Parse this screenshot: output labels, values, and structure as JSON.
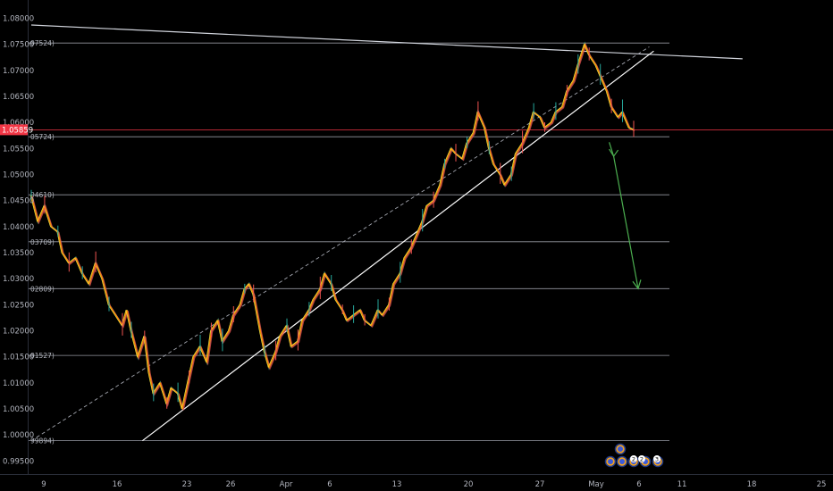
{
  "chart_data": {
    "type": "line",
    "title": "",
    "ylim": [
      0.9925,
      1.0835
    ],
    "y_ticks": [
      "1.08000",
      "1.07500",
      "1.07000",
      "1.06500",
      "1.06000",
      "1.05500",
      "1.05000",
      "1.04500",
      "1.04000",
      "1.03500",
      "1.03000",
      "1.02500",
      "1.02000",
      "1.01500",
      "1.01000",
      "1.00500",
      "1.00000",
      "0.99500"
    ],
    "x_ticks": [
      "9",
      "16",
      "23",
      "26",
      "Apr",
      "6",
      "13",
      "20",
      "27",
      "May",
      "6",
      "11",
      "18",
      "25"
    ],
    "current_price": {
      "label": "1.05859",
      "value": 1.05859,
      "color": "#f23645"
    },
    "horizontal_levels": [
      {
        "label": "07524)",
        "value": 1.07524
      },
      {
        "label": "05724)",
        "value": 1.05724
      },
      {
        "label": "04610)",
        "value": 1.0461
      },
      {
        "label": "03709)",
        "value": 1.03709
      },
      {
        "label": "02809)",
        "value": 1.02809
      },
      {
        "label": "01527)",
        "value": 1.01527
      },
      {
        "label": "99894)",
        "value": 0.99894
      }
    ],
    "series": [
      {
        "values": [
          [
            0,
            1.046
          ],
          [
            3,
            1.041
          ],
          [
            6,
            1.044
          ],
          [
            9,
            1.04
          ],
          [
            12,
            1.039
          ],
          [
            14,
            1.035
          ],
          [
            17,
            1.033
          ],
          [
            20,
            1.034
          ],
          [
            23,
            1.031
          ],
          [
            26,
            1.029
          ],
          [
            29,
            1.033
          ],
          [
            32,
            1.03
          ],
          [
            35,
            1.025
          ],
          [
            38,
            1.023
          ],
          [
            41,
            1.021
          ],
          [
            43,
            1.024
          ],
          [
            45,
            1.02
          ],
          [
            48,
            1.015
          ],
          [
            51,
            1.019
          ],
          [
            53,
            1.012
          ],
          [
            55,
            1.008
          ],
          [
            58,
            1.01
          ],
          [
            61,
            1.006
          ],
          [
            63,
            1.009
          ],
          [
            66,
            1.008
          ],
          [
            68,
            1.005
          ],
          [
            71,
            1.011
          ],
          [
            73,
            1.015
          ],
          [
            76,
            1.017
          ],
          [
            79,
            1.014
          ],
          [
            81,
            1.02
          ],
          [
            84,
            1.022
          ],
          [
            86,
            1.018
          ],
          [
            89,
            1.02
          ],
          [
            91,
            1.023
          ],
          [
            94,
            1.025
          ],
          [
            96,
            1.028
          ],
          [
            98,
            1.029
          ],
          [
            100,
            1.027
          ],
          [
            103,
            1.02
          ],
          [
            105,
            1.016
          ],
          [
            107,
            1.013
          ],
          [
            110,
            1.016
          ],
          [
            112,
            1.019
          ],
          [
            115,
            1.021
          ],
          [
            117,
            1.017
          ],
          [
            120,
            1.018
          ],
          [
            122,
            1.022
          ],
          [
            125,
            1.024
          ],
          [
            127,
            1.026
          ],
          [
            130,
            1.028
          ],
          [
            132,
            1.031
          ],
          [
            135,
            1.029
          ],
          [
            137,
            1.026
          ],
          [
            140,
            1.024
          ],
          [
            142,
            1.022
          ],
          [
            145,
            1.023
          ],
          [
            148,
            1.024
          ],
          [
            150,
            1.022
          ],
          [
            153,
            1.021
          ],
          [
            156,
            1.024
          ],
          [
            158,
            1.023
          ],
          [
            161,
            1.025
          ],
          [
            163,
            1.029
          ],
          [
            166,
            1.031
          ],
          [
            168,
            1.034
          ],
          [
            171,
            1.036
          ],
          [
            173,
            1.038
          ],
          [
            176,
            1.041
          ],
          [
            178,
            1.044
          ],
          [
            181,
            1.045
          ],
          [
            184,
            1.048
          ],
          [
            186,
            1.052
          ],
          [
            189,
            1.055
          ],
          [
            191,
            1.054
          ],
          [
            194,
            1.053
          ],
          [
            196,
            1.056
          ],
          [
            199,
            1.058
          ],
          [
            201,
            1.062
          ],
          [
            204,
            1.059
          ],
          [
            206,
            1.055
          ],
          [
            208,
            1.052
          ],
          [
            211,
            1.05
          ],
          [
            213,
            1.048
          ],
          [
            216,
            1.05
          ],
          [
            218,
            1.054
          ],
          [
            221,
            1.056
          ],
          [
            224,
            1.059
          ],
          [
            226,
            1.062
          ],
          [
            229,
            1.061
          ],
          [
            231,
            1.059
          ],
          [
            234,
            1.06
          ],
          [
            236,
            1.062
          ],
          [
            239,
            1.063
          ],
          [
            241,
            1.066
          ],
          [
            244,
            1.068
          ],
          [
            246,
            1.071
          ],
          [
            249,
            1.075
          ],
          [
            251,
            1.073
          ],
          [
            254,
            1.071
          ],
          [
            256,
            1.069
          ],
          [
            259,
            1.066
          ],
          [
            261,
            1.063
          ],
          [
            264,
            1.061
          ],
          [
            266,
            1.062
          ],
          [
            269,
            1.059
          ],
          [
            271,
            1.0586
          ]
        ],
        "color": "#ff8c00"
      }
    ],
    "annotations": {
      "upper_trendline": [
        [
          0,
          1.0787
        ],
        [
          320,
          1.0722
        ]
      ],
      "support_trendline": [
        [
          50,
          0.9989
        ],
        [
          280,
          1.0737
        ]
      ],
      "dashed_channel": [
        [
          0,
          0.9989
        ],
        [
          278,
          1.0745
        ]
      ],
      "projection_arrow": [
        [
          260,
          1.0562
        ],
        [
          262,
          1.0535
        ],
        [
          273,
          1.0281
        ]
      ],
      "event_badges": [
        "2",
        "2",
        "3"
      ]
    }
  }
}
